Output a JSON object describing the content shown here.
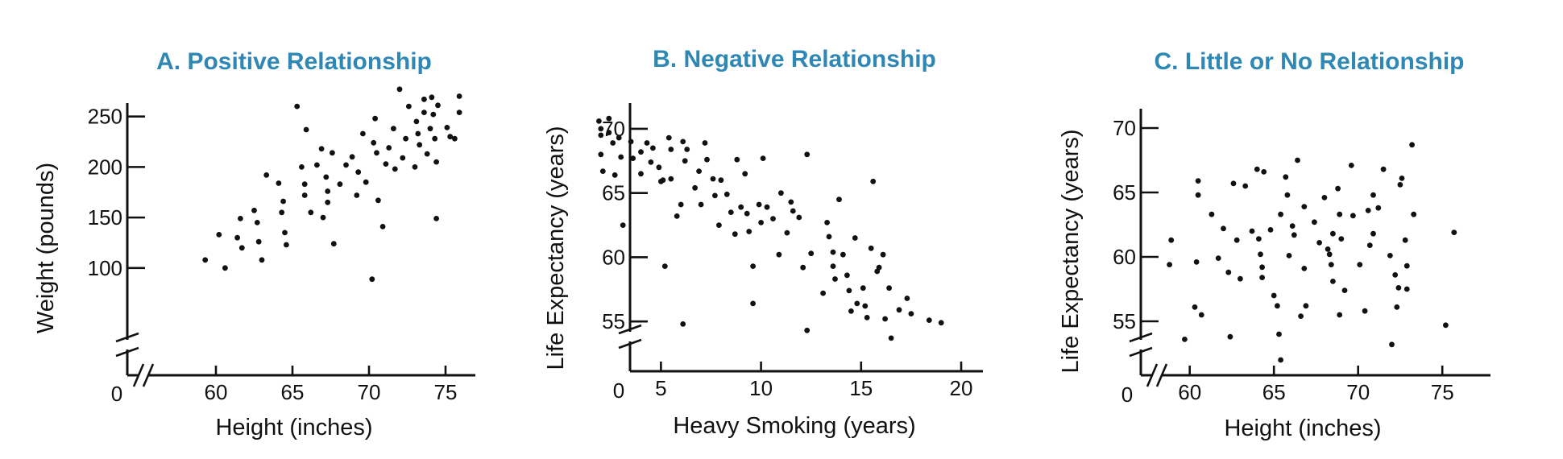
{
  "chart_data": [
    {
      "type": "scatter",
      "title": "A. Positive Relationship",
      "xlabel": "Height (inches)",
      "ylabel": "Weight (pounds)",
      "origin_label": "0",
      "xlim": [
        57,
        77
      ],
      "ylim": [
        68,
        280
      ],
      "xticks": [
        60,
        65,
        70,
        75
      ],
      "yticks": [
        100,
        150,
        200,
        250
      ],
      "x_axis_break": true,
      "y_axis_break": true,
      "grid": false,
      "points": [
        [
          59.3,
          108
        ],
        [
          60.2,
          133
        ],
        [
          60.6,
          100
        ],
        [
          61.4,
          130
        ],
        [
          61.6,
          149
        ],
        [
          61.7,
          120
        ],
        [
          62.5,
          157
        ],
        [
          62.7,
          145
        ],
        [
          62.8,
          126
        ],
        [
          63.0,
          108
        ],
        [
          63.3,
          192
        ],
        [
          64.1,
          184
        ],
        [
          64.3,
          155
        ],
        [
          64.4,
          166
        ],
        [
          64.5,
          135
        ],
        [
          64.6,
          123
        ],
        [
          65.3,
          260
        ],
        [
          65.6,
          200
        ],
        [
          65.8,
          183
        ],
        [
          65.8,
          172
        ],
        [
          65.9,
          237
        ],
        [
          66.2,
          155
        ],
        [
          66.6,
          202
        ],
        [
          66.9,
          218
        ],
        [
          67.0,
          150
        ],
        [
          67.2,
          190
        ],
        [
          67.3,
          176
        ],
        [
          67.3,
          165
        ],
        [
          67.6,
          214
        ],
        [
          67.7,
          124
        ],
        [
          68.1,
          183
        ],
        [
          68.5,
          202
        ],
        [
          68.9,
          210
        ],
        [
          69.2,
          172
        ],
        [
          69.3,
          195
        ],
        [
          69.6,
          233
        ],
        [
          69.8,
          185
        ],
        [
          70.3,
          224
        ],
        [
          70.4,
          248
        ],
        [
          70.5,
          214
        ],
        [
          70.6,
          167
        ],
        [
          70.9,
          141
        ],
        [
          70.2,
          89
        ],
        [
          71.1,
          203
        ],
        [
          71.3,
          219
        ],
        [
          71.6,
          238
        ],
        [
          71.7,
          198
        ],
        [
          72.2,
          209
        ],
        [
          72.4,
          228
        ],
        [
          72.0,
          277
        ],
        [
          72.6,
          260
        ],
        [
          73.0,
          200
        ],
        [
          73.1,
          245
        ],
        [
          73.2,
          233
        ],
        [
          73.3,
          222
        ],
        [
          73.6,
          254
        ],
        [
          73.6,
          267
        ],
        [
          73.8,
          213
        ],
        [
          74.0,
          238
        ],
        [
          74.2,
          252
        ],
        [
          74.3,
          228
        ],
        [
          74.4,
          205
        ],
        [
          74.1,
          269
        ],
        [
          74.5,
          261
        ],
        [
          74.4,
          149
        ],
        [
          75.1,
          239
        ],
        [
          75.3,
          230
        ],
        [
          75.6,
          228
        ],
        [
          75.9,
          270
        ],
        [
          75.9,
          254
        ]
      ]
    },
    {
      "type": "scatter",
      "title": "B. Negative Relationship",
      "xlabel": "Heavy Smoking (years)",
      "ylabel": "Life Expectancy (years)",
      "origin_label": "0",
      "xlim": [
        1,
        20
      ],
      "ylim": [
        51.5,
        71
      ],
      "xticks": [
        5,
        10,
        15,
        20
      ],
      "yticks": [
        55,
        60,
        65,
        70
      ],
      "x_axis_break": false,
      "y_axis_break": true,
      "grid": false,
      "points": [
        [
          1.9,
          70.6
        ],
        [
          2.0,
          70.0
        ],
        [
          2.0,
          69.5
        ],
        [
          2.0,
          68.0
        ],
        [
          2.1,
          66.7
        ],
        [
          2.4,
          70.8
        ],
        [
          2.4,
          69.7
        ],
        [
          2.6,
          68.9
        ],
        [
          2.7,
          66.4
        ],
        [
          2.9,
          69.3
        ],
        [
          3.0,
          67.8
        ],
        [
          3.1,
          62.5
        ],
        [
          3.5,
          69.0
        ],
        [
          3.6,
          67.7
        ],
        [
          4.0,
          68.2
        ],
        [
          4.0,
          66.5
        ],
        [
          4.3,
          68.9
        ],
        [
          4.5,
          67.4
        ],
        [
          4.6,
          68.5
        ],
        [
          4.9,
          67.0
        ],
        [
          5.0,
          65.9
        ],
        [
          5.1,
          66.0
        ],
        [
          5.2,
          59.3
        ],
        [
          5.4,
          69.3
        ],
        [
          5.5,
          68.4
        ],
        [
          5.5,
          66.1
        ],
        [
          5.8,
          63.2
        ],
        [
          6.0,
          64.1
        ],
        [
          6.1,
          69.0
        ],
        [
          6.2,
          67.5
        ],
        [
          6.1,
          54.8
        ],
        [
          6.3,
          68.4
        ],
        [
          6.7,
          65.4
        ],
        [
          6.9,
          66.7
        ],
        [
          7.0,
          64.1
        ],
        [
          7.2,
          68.9
        ],
        [
          7.3,
          67.6
        ],
        [
          7.6,
          66.1
        ],
        [
          7.7,
          64.8
        ],
        [
          7.9,
          62.5
        ],
        [
          8.0,
          66.0
        ],
        [
          8.3,
          64.9
        ],
        [
          8.5,
          63.5
        ],
        [
          8.7,
          61.8
        ],
        [
          8.8,
          67.6
        ],
        [
          9.0,
          63.9
        ],
        [
          9.2,
          66.5
        ],
        [
          9.3,
          63.4
        ],
        [
          9.4,
          62.0
        ],
        [
          9.6,
          59.3
        ],
        [
          9.6,
          56.4
        ],
        [
          9.9,
          64.1
        ],
        [
          10.0,
          62.7
        ],
        [
          10.1,
          67.7
        ],
        [
          10.3,
          63.9
        ],
        [
          10.6,
          63.0
        ],
        [
          10.9,
          60.2
        ],
        [
          11.0,
          65.0
        ],
        [
          11.3,
          61.9
        ],
        [
          11.5,
          64.3
        ],
        [
          11.6,
          63.6
        ],
        [
          11.9,
          63.1
        ],
        [
          12.1,
          59.2
        ],
        [
          12.3,
          68.0
        ],
        [
          12.3,
          54.3
        ],
        [
          12.5,
          60.3
        ],
        [
          13.1,
          57.2
        ],
        [
          13.3,
          62.7
        ],
        [
          13.4,
          61.6
        ],
        [
          13.6,
          60.4
        ],
        [
          13.6,
          59.3
        ],
        [
          13.7,
          58.3
        ],
        [
          13.9,
          64.5
        ],
        [
          14.1,
          60.2
        ],
        [
          14.3,
          58.6
        ],
        [
          14.4,
          57.4
        ],
        [
          14.5,
          55.8
        ],
        [
          14.7,
          61.5
        ],
        [
          14.8,
          56.4
        ],
        [
          15.1,
          57.6
        ],
        [
          15.2,
          56.2
        ],
        [
          15.3,
          55.3
        ],
        [
          15.5,
          60.7
        ],
        [
          15.6,
          65.9
        ],
        [
          15.8,
          58.9
        ],
        [
          15.9,
          59.2
        ],
        [
          16.1,
          60.2
        ],
        [
          16.2,
          55.2
        ],
        [
          16.4,
          57.6
        ],
        [
          16.5,
          53.7
        ],
        [
          16.9,
          55.9
        ],
        [
          17.3,
          56.8
        ],
        [
          17.5,
          55.6
        ],
        [
          18.4,
          55.1
        ],
        [
          19.0,
          54.9
        ]
      ]
    },
    {
      "type": "scatter",
      "title": "C. Little or No Relationship",
      "xlabel": "Height (inches)",
      "ylabel": "Life Expectancy (years)",
      "origin_label": "0",
      "xlim": [
        57,
        77
      ],
      "ylim": [
        51.5,
        71
      ],
      "xticks": [
        60,
        65,
        70,
        75
      ],
      "yticks": [
        55,
        60,
        65,
        70
      ],
      "x_axis_break": true,
      "y_axis_break": true,
      "grid": false,
      "points": [
        [
          58.8,
          59.4
        ],
        [
          58.9,
          61.3
        ],
        [
          59.7,
          53.6
        ],
        [
          60.3,
          56.1
        ],
        [
          60.4,
          59.6
        ],
        [
          60.5,
          65.9
        ],
        [
          60.5,
          64.8
        ],
        [
          60.7,
          55.5
        ],
        [
          61.3,
          63.3
        ],
        [
          61.7,
          59.9
        ],
        [
          62.0,
          62.2
        ],
        [
          62.3,
          58.8
        ],
        [
          62.4,
          53.8
        ],
        [
          62.6,
          65.7
        ],
        [
          62.8,
          61.3
        ],
        [
          63.0,
          58.3
        ],
        [
          63.3,
          65.5
        ],
        [
          63.7,
          62.0
        ],
        [
          64.0,
          66.8
        ],
        [
          64.1,
          61.4
        ],
        [
          64.2,
          60.2
        ],
        [
          64.3,
          59.2
        ],
        [
          64.3,
          58.4
        ],
        [
          64.4,
          66.6
        ],
        [
          64.8,
          62.1
        ],
        [
          65.0,
          57.0
        ],
        [
          65.2,
          56.2
        ],
        [
          65.3,
          54.0
        ],
        [
          65.4,
          63.3
        ],
        [
          65.4,
          52.0
        ],
        [
          65.7,
          66.2
        ],
        [
          65.8,
          64.8
        ],
        [
          65.9,
          60.1
        ],
        [
          66.1,
          62.4
        ],
        [
          66.2,
          61.7
        ],
        [
          66.4,
          67.5
        ],
        [
          66.6,
          55.4
        ],
        [
          66.8,
          63.9
        ],
        [
          66.9,
          56.2
        ],
        [
          66.8,
          59.1
        ],
        [
          67.4,
          62.7
        ],
        [
          67.7,
          61.1
        ],
        [
          68.0,
          64.6
        ],
        [
          68.2,
          60.6
        ],
        [
          68.3,
          60.2
        ],
        [
          68.4,
          59.4
        ],
        [
          68.5,
          61.8
        ],
        [
          68.5,
          58.1
        ],
        [
          68.8,
          65.3
        ],
        [
          68.9,
          63.3
        ],
        [
          68.9,
          55.5
        ],
        [
          69.0,
          61.4
        ],
        [
          69.2,
          57.4
        ],
        [
          69.6,
          67.1
        ],
        [
          69.7,
          63.2
        ],
        [
          70.1,
          59.4
        ],
        [
          70.4,
          55.8
        ],
        [
          70.6,
          63.6
        ],
        [
          70.7,
          60.9
        ],
        [
          70.9,
          64.8
        ],
        [
          70.9,
          61.8
        ],
        [
          71.2,
          63.8
        ],
        [
          71.5,
          66.8
        ],
        [
          71.9,
          60.1
        ],
        [
          72.0,
          53.2
        ],
        [
          72.2,
          58.6
        ],
        [
          72.3,
          56.1
        ],
        [
          72.4,
          57.6
        ],
        [
          72.5,
          65.6
        ],
        [
          72.6,
          66.1
        ],
        [
          72.8,
          61.3
        ],
        [
          72.9,
          59.3
        ],
        [
          72.9,
          57.5
        ],
        [
          73.2,
          68.7
        ],
        [
          73.3,
          63.3
        ],
        [
          75.2,
          54.7
        ],
        [
          75.7,
          61.9
        ]
      ]
    }
  ]
}
